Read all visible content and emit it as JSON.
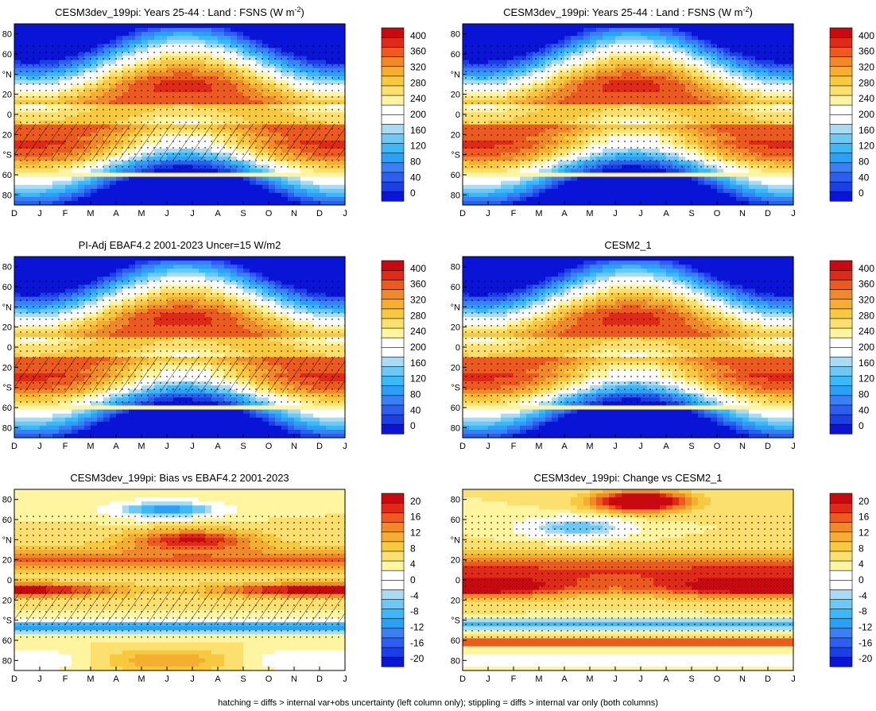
{
  "footnote": "hatching = diffs > internal var+obs uncertainty (left column only); stippling = diffs > internal var only (both columns)",
  "month_labels": [
    "D",
    "J",
    "F",
    "M",
    "A",
    "M",
    "J",
    "J",
    "A",
    "S",
    "O",
    "N",
    "D",
    "J"
  ],
  "lat_labels": [
    "80",
    "60",
    "°N",
    "20",
    "0",
    "20",
    "°S",
    "60",
    "80"
  ],
  "colors": {
    "fsns_scale": [
      "#0a14d6",
      "#1a3fe6",
      "#2c5ff0",
      "#3a7ff6",
      "#2aa0f8",
      "#3ab8f8",
      "#6cc8f4",
      "#a8dcf4",
      "#ffffff",
      "#ffffff",
      "#fff4a0",
      "#fbe070",
      "#f7c93f",
      "#f5ae30",
      "#f08a28",
      "#ec5a1e",
      "#e02a18",
      "#c80a10"
    ],
    "diff_scale": [
      "#0a14d6",
      "#1a3fe6",
      "#2c5ff0",
      "#3a7ff6",
      "#2aa0f8",
      "#3ab8f8",
      "#6cc8f4",
      "#a8dcf4",
      "#ffffff",
      "#ffffff",
      "#fff4a0",
      "#fbe070",
      "#f7c93f",
      "#f5ae30",
      "#f08a28",
      "#ec5a1e",
      "#e02a18",
      "#c80a10"
    ]
  },
  "chart_data": [
    {
      "type": "heatmap",
      "panel": "top-left",
      "title_parts": [
        "CESM3dev_199pi: Years 25-44 : Land : FSNS (W m",
        "-2",
        ")"
      ],
      "field": "fsns",
      "hatching": true,
      "colorbar": {
        "ticks": [
          "400",
          "360",
          "320",
          "280",
          "240",
          "200",
          "160",
          "120",
          "80",
          "40",
          "0"
        ],
        "range": [
          -20,
          420
        ],
        "step": 20
      },
      "xlim": [
        "D",
        "J"
      ],
      "ylim": [
        -90,
        90
      ]
    },
    {
      "type": "heatmap",
      "panel": "top-right",
      "title_parts": [
        "CESM3dev_199pi: Years 25-44 : Land : FSNS (W m",
        "-2",
        ")"
      ],
      "field": "fsns",
      "hatching": false,
      "colorbar": {
        "ticks": [
          "400",
          "360",
          "320",
          "280",
          "240",
          "200",
          "160",
          "120",
          "80",
          "40",
          "0"
        ],
        "range": [
          -20,
          420
        ],
        "step": 20
      },
      "xlim": [
        "D",
        "J"
      ],
      "ylim": [
        -90,
        90
      ]
    },
    {
      "type": "heatmap",
      "panel": "middle-left",
      "title_parts": [
        "PI-Adj EBAF4.2 2001-2023 Uncer=15 W/m2",
        "",
        ""
      ],
      "field": "fsns",
      "hatching": true,
      "colorbar": {
        "ticks": [
          "400",
          "360",
          "320",
          "280",
          "240",
          "200",
          "160",
          "120",
          "80",
          "40",
          "0"
        ],
        "range": [
          -20,
          420
        ],
        "step": 20
      },
      "xlim": [
        "D",
        "J"
      ],
      "ylim": [
        -90,
        90
      ]
    },
    {
      "type": "heatmap",
      "panel": "middle-right",
      "title_parts": [
        "CESM2_1",
        "",
        ""
      ],
      "field": "fsns",
      "hatching": false,
      "colorbar": {
        "ticks": [
          "400",
          "360",
          "320",
          "280",
          "240",
          "200",
          "160",
          "120",
          "80",
          "40",
          "0"
        ],
        "range": [
          -20,
          420
        ],
        "step": 20
      },
      "xlim": [
        "D",
        "J"
      ],
      "ylim": [
        -90,
        90
      ]
    },
    {
      "type": "heatmap",
      "panel": "bottom-left",
      "title_parts": [
        "CESM3dev_199pi: Bias vs EBAF4.2 2001-2023",
        "",
        ""
      ],
      "field": "bias",
      "hatching": true,
      "colorbar": {
        "ticks": [
          "20",
          "16",
          "12",
          "8",
          "4",
          "0",
          "-4",
          "-8",
          "-12",
          "-16",
          "-20"
        ],
        "range": [
          -22,
          22
        ],
        "step": 2
      },
      "xlim": [
        "D",
        "J"
      ],
      "ylim": [
        -90,
        90
      ]
    },
    {
      "type": "heatmap",
      "panel": "bottom-right",
      "title_parts": [
        "CESM3dev_199pi: Change vs CESM2_1",
        "",
        ""
      ],
      "field": "change",
      "hatching": false,
      "colorbar": {
        "ticks": [
          "20",
          "16",
          "12",
          "8",
          "4",
          "0",
          "-4",
          "-8",
          "-12",
          "-16",
          "-20"
        ],
        "range": [
          -22,
          22
        ],
        "step": 2
      },
      "xlim": [
        "D",
        "J"
      ],
      "ylim": [
        -90,
        90
      ]
    }
  ]
}
